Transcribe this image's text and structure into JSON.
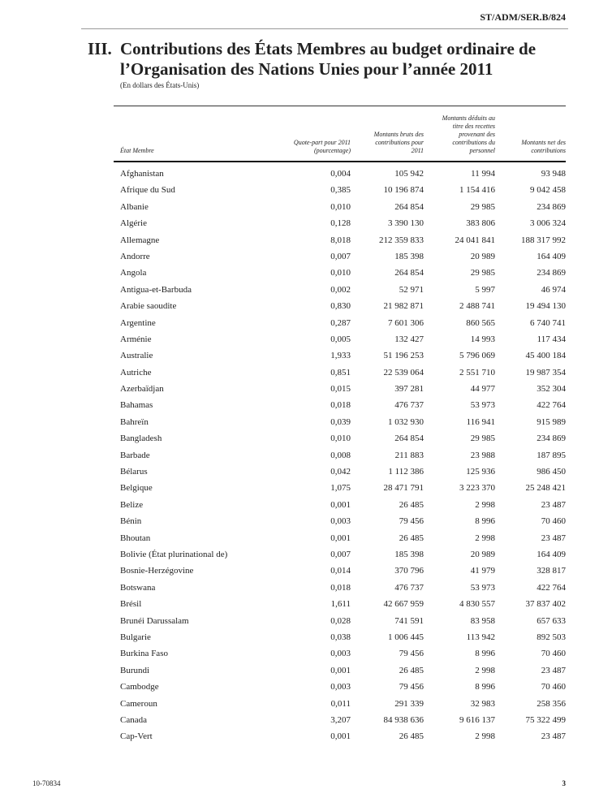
{
  "doc_symbol": "ST/ADM/SER.B/824",
  "section_number": "III.",
  "title": "Contributions des États Membres au budget ordinaire de l’Organisation des Nations Unies pour l’année 2011",
  "subtitle": "(En dollars des États-Unis)",
  "columns": [
    "État Membre",
    "Quote-part pour 2011 (pourcentage)",
    "Montants bruts des contributions pour 2011",
    "Montants déduits au titre des recettes provenant des contributions du personnel",
    "Montants net des contributions"
  ],
  "rows": [
    [
      "Afghanistan",
      "0,004",
      "105 942",
      "11 994",
      "93 948"
    ],
    [
      "Afrique du Sud",
      "0,385",
      "10 196 874",
      "1 154 416",
      "9 042 458"
    ],
    [
      "Albanie",
      "0,010",
      "264 854",
      "29 985",
      "234 869"
    ],
    [
      "Algérie",
      "0,128",
      "3 390 130",
      "383 806",
      "3 006 324"
    ],
    [
      "Allemagne",
      "8,018",
      "212 359 833",
      "24 041 841",
      "188 317 992"
    ],
    [
      "Andorre",
      "0,007",
      "185 398",
      "20 989",
      "164 409"
    ],
    [
      "Angola",
      "0,010",
      "264 854",
      "29 985",
      "234 869"
    ],
    [
      "Antigua-et-Barbuda",
      "0,002",
      "52 971",
      "5 997",
      "46 974"
    ],
    [
      "Arabie saoudite",
      "0,830",
      "21 982 871",
      "2 488 741",
      "19 494 130"
    ],
    [
      "Argentine",
      "0,287",
      "7 601 306",
      "860 565",
      "6 740 741"
    ],
    [
      "Arménie",
      "0,005",
      "132 427",
      "14 993",
      "117 434"
    ],
    [
      "Australie",
      "1,933",
      "51 196 253",
      "5 796 069",
      "45 400 184"
    ],
    [
      "Autriche",
      "0,851",
      "22 539 064",
      "2 551 710",
      "19 987 354"
    ],
    [
      "Azerbaïdjan",
      "0,015",
      "397 281",
      "44 977",
      "352 304"
    ],
    [
      "Bahamas",
      "0,018",
      "476 737",
      "53 973",
      "422 764"
    ],
    [
      "Bahreïn",
      "0,039",
      "1 032 930",
      "116 941",
      "915 989"
    ],
    [
      "Bangladesh",
      "0,010",
      "264 854",
      "29 985",
      "234 869"
    ],
    [
      "Barbade",
      "0,008",
      "211 883",
      "23 988",
      "187 895"
    ],
    [
      "Bélarus",
      "0,042",
      "1 112 386",
      "125 936",
      "986 450"
    ],
    [
      "Belgique",
      "1,075",
      "28 471 791",
      "3 223 370",
      "25 248 421"
    ],
    [
      "Belize",
      "0,001",
      "26 485",
      "2 998",
      "23 487"
    ],
    [
      "Bénin",
      "0,003",
      "79 456",
      "8 996",
      "70 460"
    ],
    [
      "Bhoutan",
      "0,001",
      "26 485",
      "2 998",
      "23 487"
    ],
    [
      "Bolivie (État plurinational de)",
      "0,007",
      "185 398",
      "20 989",
      "164 409"
    ],
    [
      "Bosnie-Herzégovine",
      "0,014",
      "370 796",
      "41 979",
      "328 817"
    ],
    [
      "Botswana",
      "0,018",
      "476 737",
      "53 973",
      "422 764"
    ],
    [
      "Brésil",
      "1,611",
      "42 667 959",
      "4 830 557",
      "37 837 402"
    ],
    [
      "Brunéi Darussalam",
      "0,028",
      "741 591",
      "83 958",
      "657 633"
    ],
    [
      "Bulgarie",
      "0,038",
      "1 006 445",
      "113 942",
      "892 503"
    ],
    [
      "Burkina Faso",
      "0,003",
      "79 456",
      "8 996",
      "70 460"
    ],
    [
      "Burundi",
      "0,001",
      "26 485",
      "2 998",
      "23 487"
    ],
    [
      "Cambodge",
      "0,003",
      "79 456",
      "8 996",
      "70 460"
    ],
    [
      "Cameroun",
      "0,011",
      "291 339",
      "32 983",
      "258 356"
    ],
    [
      "Canada",
      "3,207",
      "84 938 636",
      "9 616 137",
      "75 322 499"
    ],
    [
      "Cap-Vert",
      "0,001",
      "26 485",
      "2 998",
      "23 487"
    ]
  ],
  "footer": {
    "job_number": "10-70834",
    "page_number": "3"
  }
}
